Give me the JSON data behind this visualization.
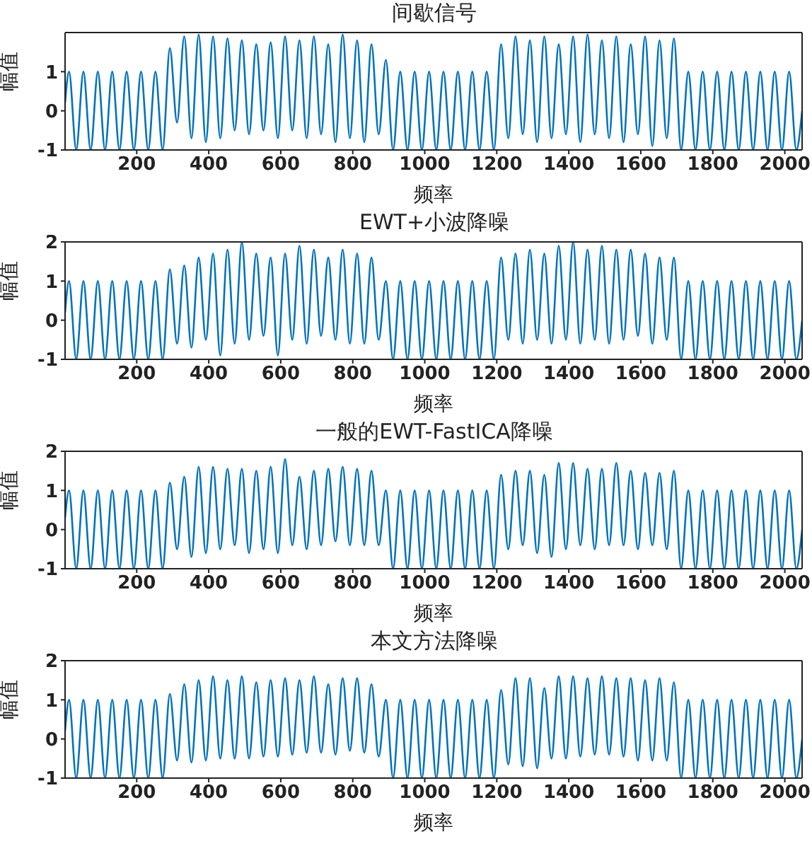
{
  "chart_data": [
    {
      "type": "line",
      "title": "间歇信号",
      "xlabel": "频率",
      "ylabel": "幅值",
      "color": "#0072bd",
      "xlim": [
        1,
        2048
      ],
      "xticks": [
        200,
        400,
        600,
        800,
        1000,
        1200,
        1400,
        1600,
        1800,
        2000
      ],
      "ylim": [
        -1,
        2
      ],
      "yticks": [
        -1,
        0,
        1
      ],
      "x": [
        1,
        12,
        32,
        52,
        72,
        92,
        112,
        132,
        152,
        172,
        192,
        212,
        232,
        252,
        272,
        292,
        312,
        332,
        352,
        372,
        392,
        412,
        432,
        452,
        472,
        492,
        512,
        532,
        552,
        572,
        592,
        612,
        632,
        652,
        672,
        692,
        712,
        732,
        752,
        772,
        792,
        812,
        832,
        852,
        872,
        892,
        912,
        932,
        952,
        972,
        992,
        1012,
        1032,
        1052,
        1072,
        1092,
        1112,
        1132,
        1152,
        1172,
        1192,
        1212,
        1232,
        1252,
        1272,
        1292,
        1312,
        1332,
        1352,
        1372,
        1392,
        1412,
        1432,
        1452,
        1472,
        1492,
        1512,
        1532,
        1552,
        1572,
        1592,
        1612,
        1632,
        1652,
        1672,
        1692,
        1712,
        1732,
        1752,
        1772,
        1792,
        1812,
        1832,
        1852,
        1872,
        1892,
        1912,
        1932,
        1952,
        1972,
        1992,
        2012,
        2032,
        2048
      ],
      "values": [
        0.2,
        1,
        -1,
        1,
        -1,
        1,
        -1,
        1,
        -1,
        1,
        -1,
        1,
        -1,
        1,
        -1,
        1.6,
        -0.3,
        1.9,
        -0.7,
        1.95,
        -0.8,
        1.9,
        -0.7,
        1.85,
        -0.5,
        1.8,
        -0.6,
        1.7,
        -0.5,
        1.75,
        -0.7,
        1.9,
        -0.5,
        1.8,
        -0.7,
        1.9,
        -0.6,
        1.7,
        -0.8,
        1.95,
        -0.7,
        1.8,
        -0.8,
        1.7,
        -0.6,
        1.3,
        -1,
        1,
        -1,
        1,
        -1,
        1,
        -1,
        1,
        -1,
        1,
        -1,
        1,
        -1,
        1,
        -1,
        1.7,
        -0.7,
        1.9,
        -0.6,
        1.8,
        -0.8,
        1.9,
        -0.7,
        1.7,
        -0.6,
        1.9,
        -0.8,
        1.95,
        -0.6,
        1.8,
        -0.7,
        1.9,
        -0.8,
        1.7,
        -0.6,
        1.9,
        -0.9,
        1.8,
        -0.7,
        1.85,
        -1,
        1,
        -1,
        1,
        -1,
        1,
        -1,
        1,
        -1,
        1,
        -1,
        1,
        -1,
        1,
        -1,
        1,
        -1,
        0
      ]
    },
    {
      "type": "line",
      "title": "EWT+小波降噪",
      "xlabel": "频率",
      "ylabel": "幅值",
      "color": "#0072bd",
      "xlim": [
        1,
        2048
      ],
      "xticks": [
        200,
        400,
        600,
        800,
        1000,
        1200,
        1400,
        1600,
        1800,
        2000
      ],
      "ylim": [
        -1,
        2
      ],
      "yticks": [
        -1,
        0,
        1,
        2
      ],
      "x": [
        1,
        12,
        32,
        52,
        72,
        92,
        112,
        132,
        152,
        172,
        192,
        212,
        232,
        252,
        272,
        292,
        312,
        332,
        352,
        372,
        392,
        412,
        432,
        452,
        472,
        492,
        512,
        532,
        552,
        572,
        592,
        612,
        632,
        652,
        672,
        692,
        712,
        732,
        752,
        772,
        792,
        812,
        832,
        852,
        872,
        892,
        912,
        932,
        952,
        972,
        992,
        1012,
        1032,
        1052,
        1072,
        1092,
        1112,
        1132,
        1152,
        1172,
        1192,
        1212,
        1232,
        1252,
        1272,
        1292,
        1312,
        1332,
        1352,
        1372,
        1392,
        1412,
        1432,
        1452,
        1472,
        1492,
        1512,
        1532,
        1552,
        1572,
        1592,
        1612,
        1632,
        1652,
        1672,
        1692,
        1712,
        1732,
        1752,
        1772,
        1792,
        1812,
        1832,
        1852,
        1872,
        1892,
        1912,
        1932,
        1952,
        1972,
        1992,
        2012,
        2032,
        2048
      ],
      "values": [
        0.2,
        1,
        -1,
        1,
        -1,
        1,
        -1,
        1,
        -1,
        1,
        -1,
        1,
        -1,
        1,
        -1,
        1.3,
        -0.6,
        1.4,
        -0.7,
        1.6,
        -0.5,
        1.7,
        -0.9,
        1.8,
        -0.6,
        2,
        -0.5,
        1.7,
        -0.4,
        1.6,
        -0.9,
        1.7,
        -0.5,
        1.9,
        -0.6,
        1.8,
        -0.4,
        1.6,
        -0.5,
        1.8,
        -0.6,
        1.7,
        -0.6,
        1.6,
        -0.5,
        1,
        -1,
        1,
        -1,
        1,
        -1,
        1,
        -1,
        1,
        -1,
        1,
        -1,
        1,
        -1,
        1,
        -1,
        1.6,
        -0.5,
        1.7,
        -0.6,
        1.8,
        -0.5,
        1.7,
        -0.6,
        1.9,
        -0.5,
        2,
        -0.6,
        1.8,
        -0.5,
        1.9,
        -0.6,
        1.8,
        -0.5,
        1.8,
        -0.4,
        1.7,
        -0.6,
        1.6,
        -0.5,
        1.6,
        -1,
        1,
        -1,
        1,
        -1,
        1,
        -1,
        1,
        -1,
        1,
        -1,
        1,
        -1,
        1,
        -1,
        1,
        -1,
        0
      ]
    },
    {
      "type": "line",
      "title": "一般的EWT-FastICA降噪",
      "xlabel": "频率",
      "ylabel": "幅值",
      "color": "#0072bd",
      "xlim": [
        1,
        2048
      ],
      "xticks": [
        200,
        400,
        600,
        800,
        1000,
        1200,
        1400,
        1600,
        1800,
        2000
      ],
      "ylim": [
        -1,
        2
      ],
      "yticks": [
        -1,
        0,
        1,
        2
      ],
      "x": [
        1,
        12,
        32,
        52,
        72,
        92,
        112,
        132,
        152,
        172,
        192,
        212,
        232,
        252,
        272,
        292,
        312,
        332,
        352,
        372,
        392,
        412,
        432,
        452,
        472,
        492,
        512,
        532,
        552,
        572,
        592,
        612,
        632,
        652,
        672,
        692,
        712,
        732,
        752,
        772,
        792,
        812,
        832,
        852,
        872,
        892,
        912,
        932,
        952,
        972,
        992,
        1012,
        1032,
        1052,
        1072,
        1092,
        1112,
        1132,
        1152,
        1172,
        1192,
        1212,
        1232,
        1252,
        1272,
        1292,
        1312,
        1332,
        1352,
        1372,
        1392,
        1412,
        1432,
        1452,
        1472,
        1492,
        1512,
        1532,
        1552,
        1572,
        1592,
        1612,
        1632,
        1652,
        1672,
        1692,
        1712,
        1732,
        1752,
        1772,
        1792,
        1812,
        1832,
        1852,
        1872,
        1892,
        1912,
        1932,
        1952,
        1972,
        1992,
        2012,
        2032,
        2048
      ],
      "values": [
        0.3,
        1,
        -1,
        1,
        -1,
        1,
        -1,
        1,
        -1,
        1,
        -1,
        1,
        -1,
        1,
        -1,
        1.2,
        -0.5,
        1.35,
        -0.7,
        1.6,
        -0.6,
        1.6,
        -0.5,
        1.55,
        -0.4,
        1.55,
        -0.6,
        1.5,
        -0.5,
        1.6,
        -0.6,
        1.8,
        -0.4,
        1.35,
        -0.5,
        1.5,
        -0.4,
        1.55,
        -0.3,
        1.6,
        -0.4,
        1.55,
        -0.4,
        1.5,
        -0.4,
        1,
        -1,
        1,
        -1,
        1,
        -1,
        1,
        -1,
        1,
        -1,
        1,
        -1,
        1,
        -1,
        1,
        -1,
        1.4,
        -0.5,
        1.5,
        -0.4,
        1.5,
        -0.6,
        1.4,
        -0.7,
        1.7,
        -0.5,
        1.7,
        -0.4,
        1.55,
        -0.5,
        1.55,
        -0.4,
        1.7,
        -0.4,
        1.5,
        -0.5,
        1.45,
        -0.4,
        1.45,
        -0.5,
        1.5,
        -1,
        1,
        -1,
        1,
        -1,
        1,
        -1,
        1,
        -1,
        1,
        -1,
        1,
        -1,
        1,
        -1,
        1,
        -1,
        0
      ]
    },
    {
      "type": "line",
      "title": "本文方法降噪",
      "xlabel": "频率",
      "ylabel": "幅值",
      "color": "#0072bd",
      "xlim": [
        1,
        2048
      ],
      "xticks": [
        200,
        400,
        600,
        800,
        1000,
        1200,
        1400,
        1600,
        1800,
        2000
      ],
      "ylim": [
        -1,
        2
      ],
      "yticks": [
        -1,
        0,
        1,
        2
      ],
      "x": [
        1,
        12,
        32,
        52,
        72,
        92,
        112,
        132,
        152,
        172,
        192,
        212,
        232,
        252,
        272,
        292,
        312,
        332,
        352,
        372,
        392,
        412,
        432,
        452,
        472,
        492,
        512,
        532,
        552,
        572,
        592,
        612,
        632,
        652,
        672,
        692,
        712,
        732,
        752,
        772,
        792,
        812,
        832,
        852,
        872,
        892,
        912,
        932,
        952,
        972,
        992,
        1012,
        1032,
        1052,
        1072,
        1092,
        1112,
        1132,
        1152,
        1172,
        1192,
        1212,
        1232,
        1252,
        1272,
        1292,
        1312,
        1332,
        1352,
        1372,
        1392,
        1412,
        1432,
        1452,
        1472,
        1492,
        1512,
        1532,
        1552,
        1572,
        1592,
        1612,
        1632,
        1652,
        1672,
        1692,
        1712,
        1732,
        1752,
        1772,
        1792,
        1812,
        1832,
        1852,
        1872,
        1892,
        1912,
        1932,
        1952,
        1972,
        1992,
        2012,
        2032,
        2048
      ],
      "values": [
        0.2,
        1,
        -1,
        1,
        -1,
        1,
        -1,
        1,
        -1,
        1,
        -1,
        1,
        -1,
        1,
        -1,
        1.15,
        -0.55,
        1.4,
        -0.6,
        1.5,
        -0.55,
        1.6,
        -0.5,
        1.5,
        -0.5,
        1.6,
        -0.5,
        1.45,
        -0.45,
        1.5,
        -0.45,
        1.55,
        -0.4,
        1.5,
        -0.35,
        1.6,
        -0.35,
        1.4,
        -0.4,
        1.55,
        -0.3,
        1.55,
        -0.35,
        1.4,
        -0.45,
        1,
        -1,
        1,
        -1,
        1,
        -1,
        1,
        -1,
        1,
        -1,
        1,
        -1,
        1,
        -1,
        1,
        -1,
        1.25,
        -0.65,
        1.55,
        -0.7,
        1.55,
        -0.75,
        1.3,
        -0.5,
        1.6,
        -0.5,
        1.6,
        -0.45,
        1.55,
        -0.4,
        1.6,
        -0.4,
        1.55,
        -0.45,
        1.55,
        -0.55,
        1.5,
        -0.55,
        1.55,
        -0.55,
        1.45,
        -1,
        1,
        -1,
        1,
        -1,
        1,
        -1,
        1,
        -1,
        1,
        -1,
        1,
        -1,
        1,
        -1,
        1,
        -1,
        0
      ]
    }
  ]
}
